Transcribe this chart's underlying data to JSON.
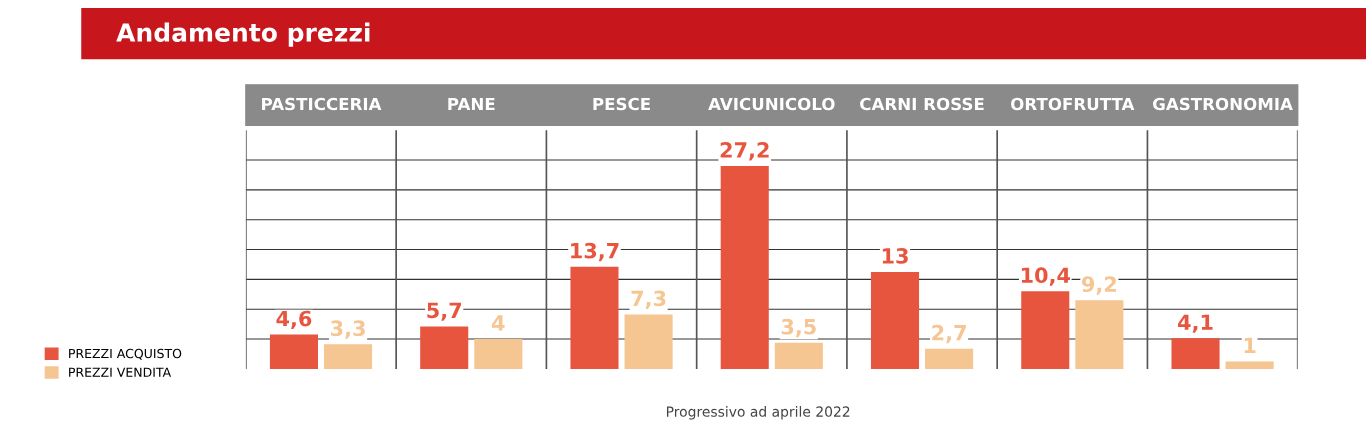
{
  "chart_data": {
    "type": "bar",
    "title": "Andamento prezzi",
    "categories": [
      "PASTICCERIA",
      "PANE",
      "PESCE",
      "AVICUNICOLO",
      "CARNI ROSSE",
      "ORTOFRUTTA",
      "GASTRONOMIA"
    ],
    "series": [
      {
        "name": "PREZZI ACQUISTO",
        "color": "#e8553f",
        "values": [
          4.6,
          5.7,
          13.7,
          27.2,
          13,
          10.4,
          4.1
        ],
        "value_labels": [
          "4,6",
          "5,7",
          "13,7",
          "27,2",
          "13",
          "10,4",
          "4,1"
        ]
      },
      {
        "name": "PREZZI VENDITA",
        "color": "#f5c592",
        "values": [
          3.3,
          4,
          7.3,
          3.5,
          2.7,
          9.2,
          1
        ],
        "value_labels": [
          "3,3",
          "4",
          "7,3",
          "3,5",
          "2,7",
          "9,2",
          "1"
        ]
      }
    ],
    "ylim": [
      0,
      32
    ],
    "yticks": [
      {
        "value": 4,
        "label": null
      },
      {
        "value": 8,
        "label": null
      },
      {
        "value": 12,
        "label": null
      },
      {
        "value": 16,
        "label": null
      },
      {
        "value": 20,
        "label": null
      },
      {
        "value": 24,
        "label": null
      },
      {
        "value": 28,
        "label": null
      }
    ],
    "tick_labels": "x",
    "grid": "y",
    "legend": "bottom left",
    "annotations": [
      "Progressivo ad aprile 2022"
    ]
  }
}
